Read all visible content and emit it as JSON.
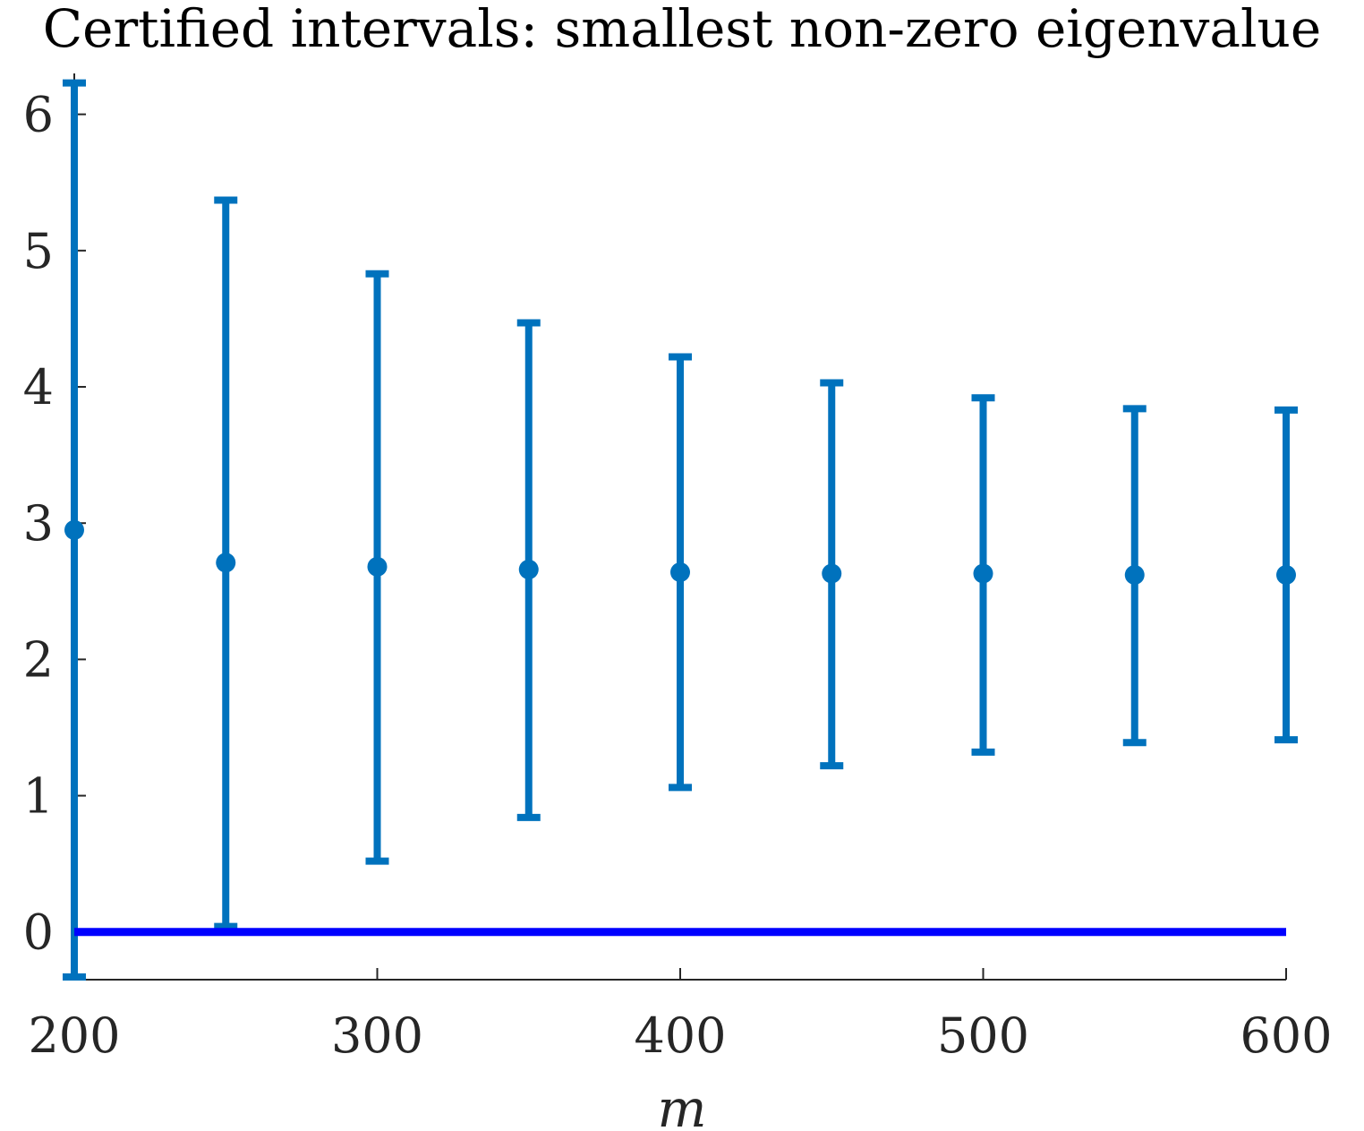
{
  "chart_data": {
    "type": "scatter",
    "title": "Certified intervals: smallest non-zero eigenvalue",
    "xlabel": "m",
    "ylabel": "",
    "xlim": [
      200,
      600
    ],
    "ylim": [
      -0.35,
      6.3
    ],
    "grid": false,
    "legend": "none",
    "xticks": [
      {
        "value": 200,
        "label": "200"
      },
      {
        "value": 300,
        "label": "300"
      },
      {
        "value": 400,
        "label": "400"
      },
      {
        "value": 500,
        "label": "500"
      },
      {
        "value": 600,
        "label": "600"
      }
    ],
    "yticks": [
      {
        "value": 0,
        "label": "0"
      },
      {
        "value": 1,
        "label": "1"
      },
      {
        "value": 2,
        "label": "2"
      },
      {
        "value": 3,
        "label": "3"
      },
      {
        "value": 4,
        "label": "4"
      },
      {
        "value": 5,
        "label": "5"
      },
      {
        "value": 6,
        "label": "6"
      }
    ],
    "series": [
      {
        "style": "errorbar",
        "color": "#0072BD",
        "x": [
          200,
          250,
          300,
          350,
          400,
          450,
          500,
          550,
          600
        ],
        "y": [
          2.95,
          2.71,
          2.68,
          2.66,
          2.64,
          2.63,
          2.63,
          2.62,
          2.62
        ],
        "lower": [
          -0.33,
          0.04,
          0.52,
          0.84,
          1.06,
          1.22,
          1.32,
          1.39,
          1.41
        ],
        "upper": [
          6.23,
          5.37,
          4.83,
          4.47,
          4.22,
          4.03,
          3.92,
          3.84,
          3.83
        ]
      },
      {
        "style": "line",
        "color": "#0000FF",
        "x": [
          200,
          600
        ],
        "y": [
          0,
          0
        ]
      }
    ]
  }
}
